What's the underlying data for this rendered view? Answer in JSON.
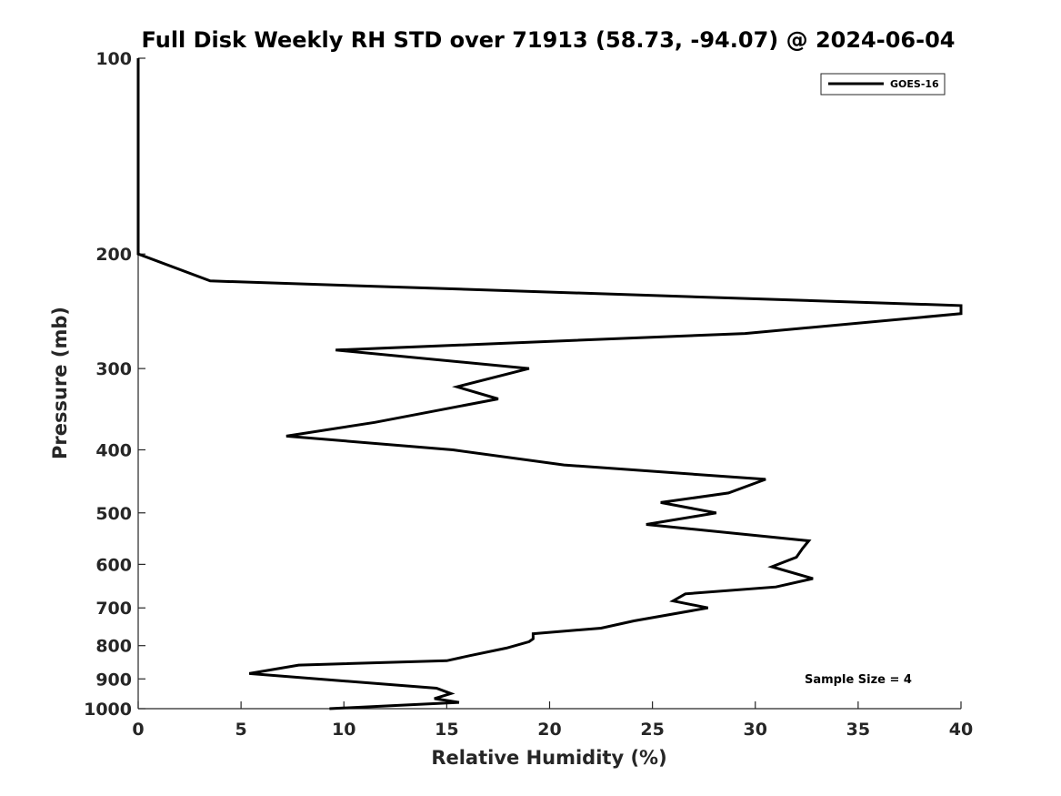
{
  "chart_data": {
    "type": "line",
    "title": "Full Disk Weekly RH STD over 71913 (58.73, -94.07) @ 2024-06-04",
    "xlabel": "Relative Humidity (%)",
    "ylabel": "Pressure (mb)",
    "xlim": [
      0,
      40
    ],
    "ylim": [
      100,
      1000
    ],
    "y_scale": "log",
    "y_direction": "reversed",
    "x_ticks": [
      0,
      5,
      10,
      15,
      20,
      25,
      30,
      35,
      40
    ],
    "x_tick_labels": [
      "0",
      "5",
      "10",
      "15",
      "20",
      "25",
      "30",
      "35",
      "40"
    ],
    "y_ticks": [
      100,
      200,
      300,
      400,
      500,
      600,
      700,
      800,
      900,
      1000
    ],
    "y_tick_labels": [
      "100",
      "200",
      "300",
      "400",
      "500",
      "600",
      "700",
      "800",
      "900",
      "1000"
    ],
    "grid": false,
    "legend_position": "top-right",
    "annotation": "Sample Size = 4",
    "series": [
      {
        "name": "GOES-16",
        "color": "#000000",
        "points": [
          [
            0,
            100
          ],
          [
            0,
            125
          ],
          [
            0,
            150
          ],
          [
            0,
            175
          ],
          [
            0,
            200
          ],
          [
            3.5,
            220
          ],
          [
            40,
            240
          ],
          [
            40,
            247
          ],
          [
            29.5,
            265
          ],
          [
            9.6,
            281
          ],
          [
            19.0,
            300
          ],
          [
            15.5,
            320
          ],
          [
            17.5,
            334
          ],
          [
            11.5,
            363
          ],
          [
            7.2,
            381
          ],
          [
            15.3,
            400
          ],
          [
            20.7,
            422
          ],
          [
            30.5,
            444
          ],
          [
            28.7,
            466
          ],
          [
            25.4,
            482
          ],
          [
            28.1,
            500
          ],
          [
            24.7,
            521
          ],
          [
            32.6,
            552
          ],
          [
            32.3,
            567
          ],
          [
            32.0,
            585
          ],
          [
            30.8,
            605
          ],
          [
            32.8,
            631
          ],
          [
            31.0,
            650
          ],
          [
            26.6,
            666
          ],
          [
            26.0,
            683
          ],
          [
            27.7,
            700
          ],
          [
            24.1,
            733
          ],
          [
            22.5,
            752
          ],
          [
            19.2,
            767
          ],
          [
            19.2,
            781
          ],
          [
            19.0,
            789
          ],
          [
            17.9,
            807
          ],
          [
            16.1,
            829
          ],
          [
            15.0,
            844
          ],
          [
            7.8,
            857
          ],
          [
            5.4,
            883
          ],
          [
            14.5,
            930
          ],
          [
            15.2,
            948
          ],
          [
            14.4,
            965
          ],
          [
            15.6,
            978
          ],
          [
            9.3,
            1000
          ]
        ]
      }
    ]
  }
}
